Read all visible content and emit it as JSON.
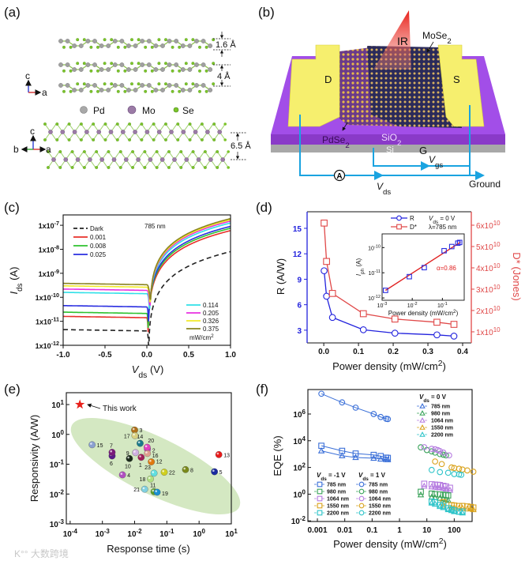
{
  "figure": {
    "panel_labels": [
      "(a)",
      "(b)",
      "(c)",
      "(d)",
      "(e)",
      "(f)"
    ],
    "a": {
      "dim_1": "1.6 Å",
      "dim_2": "4 Å",
      "dim_3": "6.5 Å",
      "axis_c": "c",
      "axis_a": "a",
      "axis_b": "b",
      "legend": [
        "Pd",
        "Mo",
        "Se"
      ],
      "colors": {
        "Pd": "#a0a0a0",
        "Mo": "#9b7ba6",
        "Se": "#7cc42a"
      }
    },
    "b": {
      "ir": "IR",
      "mose2": "MoSe_{2}",
      "pdse2": "PdSe_{2}",
      "drain": "D",
      "source": "S",
      "sio2": "SiO_{2}",
      "si": "Si",
      "gate": "G",
      "vgs": "V_{gs}",
      "vds": "V_{ds}",
      "ground": "Ground",
      "ammeter": "A",
      "colors": {
        "substrate": "#a24ee8",
        "electrode": "#f6ef6e",
        "wire": "#1aa3e0",
        "ir": "#e8403a"
      }
    },
    "watermark": "大数跨境"
  },
  "chart_data": [
    {
      "id": "c",
      "type": "line",
      "title": "785 nm",
      "xlabel": "V_{ds} (V)",
      "ylabel_main": "I",
      "ylabel_sub": "ds",
      "ylabel_unit": " (A)",
      "xlim": [
        -1,
        1
      ],
      "ylim": [
        1e-12,
        2.7e-07
      ],
      "yscale": "log",
      "xticks": [
        -1,
        -0.5,
        0,
        0.5,
        1
      ],
      "xtick_labels": [
        "-1.0",
        "-0.5",
        "0.0",
        "0.5",
        "1.0"
      ],
      "yticks": [
        1e-12,
        1e-11,
        1e-10,
        1e-09,
        1e-08,
        1e-07
      ],
      "ytick_labels": [
        "1x10^{-12}",
        "1x10^{-11}",
        "1x10^{-10}",
        "1x10^{-9}",
        "1x10^{-8}",
        "1x10^{-7}"
      ],
      "legend_unit": "mW/cm^{2}",
      "series": [
        {
          "name": "Dark",
          "color": "#222222",
          "dashed": true,
          "i_at_minus1V": 4.5e-12,
          "i_at_plus1V": 8e-09
        },
        {
          "name": "0.001",
          "color": "#e8302a",
          "i_at_minus1V": 1.6e-11,
          "i_at_plus1V": 6e-08
        },
        {
          "name": "0.008",
          "color": "#2fc22f",
          "i_at_minus1V": 2.4e-11,
          "i_at_plus1V": 7.5e-08
        },
        {
          "name": "0.025",
          "color": "#2a2ee0",
          "i_at_minus1V": 4.5e-11,
          "i_at_plus1V": 9e-08
        },
        {
          "name": "0.114",
          "color": "#30e0e8",
          "i_at_minus1V": 1.6e-10,
          "i_at_plus1V": 1.25e-07
        },
        {
          "name": "0.205",
          "color": "#e830e0",
          "i_at_minus1V": 2.2e-10,
          "i_at_plus1V": 1.5e-07
        },
        {
          "name": "0.326",
          "color": "#f2ea2a",
          "i_at_minus1V": 3e-10,
          "i_at_plus1V": 1.7e-07
        },
        {
          "name": "0.375",
          "color": "#8a8420",
          "i_at_minus1V": 3.8e-10,
          "i_at_plus1V": 1.9e-07
        }
      ]
    },
    {
      "id": "d",
      "type": "line",
      "xlabel": "Power density (mW/cm^{2})",
      "ylabel_left": "R (A/W)",
      "ylabel_right": "D* (Jones)",
      "annotation_1": "V_{ds} = 0 V",
      "annotation_2": "λ=785 nm",
      "xlim": [
        -0.048,
        0.425
      ],
      "ylim_left": [
        1.5,
        16.95
      ],
      "ylim_right": [
        4800000000.0,
        66300000000.0
      ],
      "xticks": [
        0,
        0.1,
        0.2,
        0.3,
        0.4
      ],
      "xtick_labels": [
        "0.0",
        "0.1",
        "0.2",
        "0.3",
        "0.4"
      ],
      "yticks_left": [
        3,
        6,
        9,
        12,
        15
      ],
      "ytick_labels_left": [
        "3",
        "6",
        "9",
        "12",
        "15"
      ],
      "yticks_right": [
        10000000000.0,
        20000000000.0,
        30000000000.0,
        40000000000.0,
        50000000000.0,
        60000000000.0
      ],
      "ytick_labels_right": [
        "1x10^{10}",
        "2x10^{10}",
        "3x10^{10}",
        "4x10^{10}",
        "5x10^{10}",
        "6x10^{10}"
      ],
      "x": [
        0.001,
        0.008,
        0.025,
        0.114,
        0.205,
        0.326,
        0.375
      ],
      "series": [
        {
          "name": "R",
          "axis": "left",
          "color": "#2222dd",
          "marker": "circle",
          "values": [
            10,
            7,
            4.5,
            3.05,
            2.65,
            2.45,
            2.3
          ]
        },
        {
          "name": "D*",
          "axis": "right",
          "color": "#e04848",
          "marker": "square",
          "values": [
            61000000000.0,
            43000000000.0,
            28000000000.0,
            18500000000.0,
            16000000000.0,
            14500000000.0,
            13500000000.0
          ]
        }
      ],
      "inset": {
        "type": "scatter",
        "xscale": "log",
        "yscale": "log",
        "xlabel": "Power density (mW/cm^{2})",
        "ylabel": "I_{ph} (A)",
        "xlim": [
          0.001,
          0.53
        ],
        "ylim": [
          8.1e-13,
          3.5e-10
        ],
        "xticks": [
          0.001,
          0.01,
          0.1
        ],
        "xtick_labels": [
          "10^{-3}",
          "10^{-2}",
          "10^{-1}"
        ],
        "yticks": [
          1e-12,
          1e-11,
          1e-10
        ],
        "ytick_labels": [
          "10^{-12}",
          "10^{-11}",
          "10^{-10}"
        ],
        "x": [
          0.0013,
          0.008,
          0.025,
          0.114,
          0.205,
          0.326,
          0.375
        ],
        "values": [
          2e-12,
          7e-12,
          1.6e-11,
          7.5e-11,
          1.1e-10,
          1.5e-10,
          1.6e-10
        ],
        "fit_label": "α=0.86",
        "fit_color": "#e02020"
      }
    },
    {
      "id": "e",
      "type": "scatter",
      "xscale": "log",
      "yscale": "log",
      "xlabel": "Response time (s)",
      "ylabel": "Responsivity (A/W)",
      "xlim": [
        7.6e-05,
        10
      ],
      "ylim": [
        0.001,
        25
      ],
      "xticks": [
        0.0001,
        0.001,
        0.01,
        0.1,
        1,
        10
      ],
      "xtick_labels": [
        "10^{-4}",
        "10^{-3}",
        "10^{-2}",
        "10^{-1}",
        "10^{0}",
        "10^{1}"
      ],
      "yticks": [
        0.001,
        0.01,
        0.1,
        1,
        10
      ],
      "ytick_labels": [
        "10^{-3}",
        "10^{-2}",
        "10^{-1}",
        "10^{0}",
        "10^{1}"
      ],
      "highlight": {
        "label": "This work",
        "x": 0.0002,
        "y": 10,
        "color": "#e8201a"
      },
      "points": [
        {
          "label": "1",
          "x": 0.016,
          "y": 0.17,
          "color": "#a0205a"
        },
        {
          "label": "2",
          "x": 0.025,
          "y": 0.32,
          "color": "#d040d0"
        },
        {
          "label": "3",
          "x": 0.01,
          "y": 1.4,
          "color": "#b0701a"
        },
        {
          "label": "4",
          "x": 0.0042,
          "y": 0.044,
          "color": "#b050c0"
        },
        {
          "label": "5",
          "x": 3.0,
          "y": 0.056,
          "color": "#1a2aa0"
        },
        {
          "label": "6",
          "x": 0.002,
          "y": 0.19,
          "color": "#5a1a8a"
        },
        {
          "label": "7",
          "x": 0.002,
          "y": 0.25,
          "color": "#7a1a7a"
        },
        {
          "label": "8",
          "x": 0.38,
          "y": 0.066,
          "color": "#7a8a1a"
        },
        {
          "label": "9",
          "x": 0.0107,
          "y": 0.245,
          "color": "#d0b0e0"
        },
        {
          "label": "10",
          "x": 0.0069,
          "y": 0.155,
          "color": "#1a2a1a"
        },
        {
          "label": "11",
          "x": 0.04,
          "y": 0.012,
          "color": "#5aa02a"
        },
        {
          "label": "12",
          "x": 0.033,
          "y": 0.12,
          "color": "#e07a10"
        },
        {
          "label": "13",
          "x": 4.1,
          "y": 0.21,
          "color": "#e81a1a"
        },
        {
          "label": "14",
          "x": 0.0148,
          "y": 0.5,
          "color": "#1a7a8a"
        },
        {
          "label": "15",
          "x": 0.00048,
          "y": 0.45,
          "color": "#8aa0d0"
        },
        {
          "label": "16",
          "x": 0.025,
          "y": 0.23,
          "color": "#e0a090"
        },
        {
          "label": "17",
          "x": 0.0102,
          "y": 0.91,
          "color": "#d8d080"
        },
        {
          "label": "18",
          "x": 0.031,
          "y": 0.032,
          "color": "#b0e080"
        },
        {
          "label": "19",
          "x": 0.05,
          "y": 0.0115,
          "color": "#1a90d0"
        },
        {
          "label": "20",
          "x": 0.0245,
          "y": 0.37,
          "color": "#e040c0"
        },
        {
          "label": "21",
          "x": 0.0205,
          "y": 0.0145,
          "color": "#80d0e0"
        },
        {
          "label": "22",
          "x": 0.083,
          "y": 0.054,
          "color": "#d0d020"
        },
        {
          "label": "23",
          "x": 0.04,
          "y": 0.05,
          "color": "#60e0e0"
        }
      ]
    },
    {
      "id": "f",
      "type": "scatter",
      "xscale": "log",
      "yscale": "log",
      "xlabel": "Power density (mW/cm^{2})",
      "ylabel": "EQE (%)",
      "xlim": [
        0.00045,
        450
      ],
      "ylim": [
        0.009,
        68000000.0
      ],
      "xticks": [
        0.001,
        0.01,
        0.1,
        1,
        10,
        100
      ],
      "xtick_labels": [
        "0.001",
        "0.01",
        "0.1",
        "1",
        "10",
        "100"
      ],
      "yticks": [
        0.01,
        1,
        100,
        10000,
        1000000
      ],
      "ytick_labels": [
        "10^{-2}",
        "10^{0}",
        "10^{2}",
        "10^{4}",
        "10^{6}"
      ],
      "legend_groups": [
        {
          "title": "V_{ds} = 0 V",
          "marker": "triangle"
        },
        {
          "title": "V_{ds} = -1 V",
          "marker": "square"
        },
        {
          "title": "V_{ds} = 1 V",
          "marker": "circle"
        }
      ],
      "wavelengths": [
        "785 nm",
        "980 nm",
        "1064 nm",
        "1550 nm",
        "2200 nm"
      ],
      "wavelength_colors": [
        "#3a6fd8",
        "#3aa35a",
        "#b57be0",
        "#d9a21b",
        "#2ec4c9"
      ],
      "series": [
        {
          "wl": 0,
          "marker": "circle",
          "x": [
            0.0014,
            0.008,
            0.025,
            0.114,
            0.205,
            0.326,
            0.375
          ],
          "values": [
            33000000.0,
            7400000.0,
            3000000.0,
            1000000.0,
            600000.0,
            440000.0,
            420000.0
          ]
        },
        {
          "wl": 0,
          "marker": "square",
          "x": [
            0.0014,
            0.008,
            0.025,
            0.114,
            0.205,
            0.326,
            0.375
          ],
          "values": [
            4200,
            1750,
            1100,
            870,
            710,
            540,
            520
          ]
        },
        {
          "wl": 0,
          "marker": "triangle",
          "x": [
            0.0014,
            0.008,
            0.025,
            0.114,
            0.205,
            0.326,
            0.375
          ],
          "values": [
            1750,
            760,
            560,
            490,
            430,
            390,
            380
          ]
        },
        {
          "wl": 1,
          "marker": "circle",
          "x": [
            6,
            10,
            15,
            20,
            30,
            40,
            50
          ],
          "values": [
            3200,
            2000,
            1600,
            1300,
            1000,
            900,
            800
          ]
        },
        {
          "wl": 2,
          "marker": "circle",
          "x": [
            8,
            15,
            20,
            25,
            30,
            40,
            65
          ],
          "values": [
            3300,
            2500,
            2300,
            2000,
            1700,
            1300,
            800
          ]
        },
        {
          "wl": 3,
          "marker": "circle",
          "x": [
            20,
            35,
            80,
            100,
            150,
            200,
            300,
            500
          ],
          "values": [
            280,
            180,
            100,
            90,
            80,
            70,
            60,
            48
          ]
        },
        {
          "wl": 4,
          "marker": "circle",
          "x": [
            15,
            30,
            60,
            100,
            150,
            180
          ],
          "values": [
            65,
            45,
            40,
            32,
            30,
            28
          ]
        },
        {
          "wl": 2,
          "marker": "square",
          "x": [
            8,
            15,
            20,
            25,
            30,
            40,
            50,
            70
          ],
          "values": [
            6,
            5.5,
            5.2,
            5,
            4.8,
            4.2,
            3.8,
            3
          ]
        },
        {
          "wl": 2,
          "marker": "triangle",
          "x": [
            8,
            15,
            20,
            25,
            30,
            40,
            50,
            70
          ],
          "values": [
            4,
            3.6,
            3.4,
            3.2,
            3,
            2.8,
            2.4,
            2
          ]
        },
        {
          "wl": 1,
          "marker": "square",
          "x": [
            6,
            15,
            20,
            30,
            40,
            50,
            60
          ],
          "values": [
            1.5,
            1.1,
            1,
            0.95,
            0.9,
            0.85,
            0.8
          ]
        },
        {
          "wl": 1,
          "marker": "triangle",
          "x": [
            6,
            15,
            20,
            30,
            40,
            50,
            60
          ],
          "values": [
            0.9,
            0.6,
            0.55,
            0.5,
            0.45,
            0.4,
            0.35
          ]
        },
        {
          "wl": 3,
          "marker": "square",
          "x": [
            40,
            80,
            100,
            150,
            200,
            300,
            400,
            500
          ],
          "values": [
            0.25,
            0.15,
            0.14,
            0.13,
            0.13,
            0.12,
            0.11,
            0.1
          ]
        },
        {
          "wl": 3,
          "marker": "triangle",
          "x": [
            40,
            80,
            100,
            150,
            200,
            300,
            400,
            500
          ],
          "values": [
            0.15,
            0.1,
            0.1,
            0.09,
            0.09,
            0.08,
            0.08,
            0.07
          ]
        },
        {
          "wl": 4,
          "marker": "square",
          "x": [
            15,
            20,
            30,
            40,
            60,
            80,
            100,
            150,
            200
          ],
          "values": [
            0.28,
            0.25,
            0.16,
            0.13,
            0.09,
            0.07,
            0.06,
            0.05,
            0.05
          ]
        },
        {
          "wl": 4,
          "marker": "triangle",
          "x": [
            15,
            20,
            30,
            40,
            60,
            80,
            100,
            150,
            200
          ],
          "values": [
            0.22,
            0.18,
            0.12,
            0.1,
            0.07,
            0.06,
            0.05,
            0.045,
            0.04
          ]
        }
      ]
    }
  ]
}
